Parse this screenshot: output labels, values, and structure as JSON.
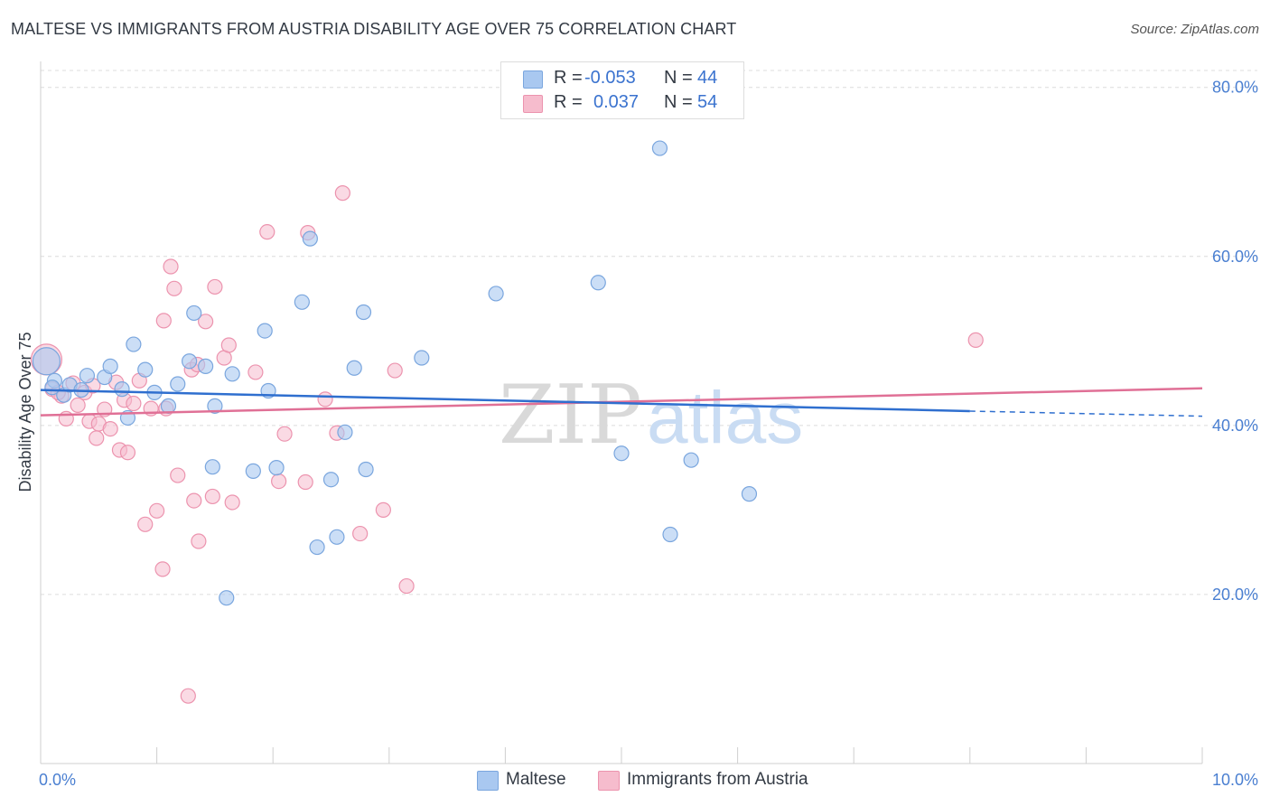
{
  "title": "MALTESE VS IMMIGRANTS FROM AUSTRIA DISABILITY AGE OVER 75 CORRELATION CHART",
  "source": "Source: ZipAtlas.com",
  "watermark": {
    "zip": "ZIP",
    "atlas": "atlas"
  },
  "legend": {
    "rows": [
      {
        "r_label": "R =",
        "r_value": "-0.053",
        "n_label": "N =",
        "n_value": "44"
      },
      {
        "r_label": "R =",
        "r_value": "0.037",
        "n_label": "N =",
        "n_value": "54"
      }
    ]
  },
  "bottom_legend": [
    "Maltese",
    "Immigrants from Austria"
  ],
  "colors": {
    "blue_fill": "#a9c8f0",
    "blue_stroke": "#7aa6de",
    "blue_line": "#2f6fcf",
    "pink_fill": "#f6bccd",
    "pink_stroke": "#ec93ae",
    "pink_line": "#e07096",
    "tick_text": "#4a7fd1",
    "grid": "#dcdcdc"
  },
  "chart_data": {
    "type": "scatter",
    "title": "MALTESE VS IMMIGRANTS FROM AUSTRIA DISABILITY AGE OVER 75 CORRELATION CHART",
    "xlabel": "",
    "ylabel": "Disability Age Over 75",
    "xlim": [
      0,
      10
    ],
    "ylim": [
      0,
      82
    ],
    "x_tick_labels": [
      "0.0%",
      "10.0%"
    ],
    "y_ticks": [
      20,
      40,
      60,
      80
    ],
    "y_tick_labels": [
      "20.0%",
      "40.0%",
      "60.0%",
      "80.0%"
    ],
    "grid": true,
    "legend_position": "top-center",
    "series": [
      {
        "name": "Maltese",
        "r": -0.053,
        "n": 44,
        "trend": {
          "x": [
            0.0,
            8.0
          ],
          "y": [
            44.2,
            41.7
          ]
        },
        "trend_dashed": {
          "x": [
            8.0,
            10.0
          ],
          "y": [
            41.7,
            41.1
          ]
        },
        "points": [
          [
            0.05,
            47.6
          ],
          [
            0.12,
            45.3
          ],
          [
            0.2,
            43.6
          ],
          [
            0.25,
            44.8
          ],
          [
            0.35,
            44.2
          ],
          [
            0.4,
            45.9
          ],
          [
            0.55,
            45.7
          ],
          [
            0.6,
            47.0
          ],
          [
            0.7,
            44.3
          ],
          [
            0.75,
            40.9
          ],
          [
            0.8,
            49.6
          ],
          [
            0.9,
            46.6
          ],
          [
            0.98,
            43.9
          ],
          [
            1.1,
            42.3
          ],
          [
            1.18,
            44.9
          ],
          [
            1.28,
            47.6
          ],
          [
            1.32,
            53.3
          ],
          [
            1.42,
            47.0
          ],
          [
            1.5,
            42.3
          ],
          [
            1.48,
            35.1
          ],
          [
            1.6,
            19.6
          ],
          [
            1.65,
            46.1
          ],
          [
            1.83,
            34.6
          ],
          [
            1.93,
            51.2
          ],
          [
            1.96,
            44.1
          ],
          [
            2.03,
            35.0
          ],
          [
            2.25,
            54.6
          ],
          [
            2.32,
            62.1
          ],
          [
            2.38,
            25.6
          ],
          [
            2.5,
            33.6
          ],
          [
            2.55,
            26.8
          ],
          [
            2.62,
            39.2
          ],
          [
            2.7,
            46.8
          ],
          [
            2.78,
            53.4
          ],
          [
            2.8,
            34.8
          ],
          [
            3.28,
            48.0
          ],
          [
            3.92,
            55.6
          ],
          [
            4.8,
            56.9
          ],
          [
            5.0,
            36.7
          ],
          [
            5.33,
            72.8
          ],
          [
            5.42,
            27.1
          ],
          [
            5.6,
            35.9
          ],
          [
            6.1,
            31.9
          ],
          [
            0.1,
            44.5
          ]
        ]
      },
      {
        "name": "Immigrants from Austria",
        "r": 0.037,
        "n": 54,
        "trend": {
          "x": [
            0.0,
            10.0
          ],
          "y": [
            41.2,
            44.4
          ]
        },
        "points": [
          [
            0.05,
            47.8
          ],
          [
            0.1,
            44.3
          ],
          [
            0.18,
            43.5
          ],
          [
            0.22,
            40.8
          ],
          [
            0.28,
            45.0
          ],
          [
            0.32,
            42.4
          ],
          [
            0.38,
            43.9
          ],
          [
            0.42,
            40.5
          ],
          [
            0.45,
            44.7
          ],
          [
            0.48,
            38.5
          ],
          [
            0.5,
            40.2
          ],
          [
            0.55,
            41.9
          ],
          [
            0.6,
            39.6
          ],
          [
            0.68,
            37.1
          ],
          [
            0.72,
            43.0
          ],
          [
            0.75,
            36.8
          ],
          [
            0.8,
            42.6
          ],
          [
            0.85,
            45.3
          ],
          [
            0.9,
            28.3
          ],
          [
            0.95,
            42.0
          ],
          [
            1.0,
            29.9
          ],
          [
            1.05,
            23.0
          ],
          [
            1.06,
            52.4
          ],
          [
            1.12,
            58.8
          ],
          [
            1.15,
            56.2
          ],
          [
            1.18,
            34.1
          ],
          [
            1.27,
            8.0
          ],
          [
            1.3,
            46.6
          ],
          [
            1.32,
            31.1
          ],
          [
            1.36,
            26.3
          ],
          [
            1.42,
            52.3
          ],
          [
            1.48,
            31.6
          ],
          [
            1.5,
            56.4
          ],
          [
            1.58,
            48.0
          ],
          [
            1.62,
            49.5
          ],
          [
            1.65,
            30.9
          ],
          [
            1.85,
            46.3
          ],
          [
            1.95,
            62.9
          ],
          [
            2.05,
            33.4
          ],
          [
            2.1,
            39.0
          ],
          [
            2.28,
            33.3
          ],
          [
            2.3,
            62.8
          ],
          [
            2.45,
            43.1
          ],
          [
            2.55,
            39.1
          ],
          [
            2.6,
            67.5
          ],
          [
            2.75,
            27.2
          ],
          [
            2.95,
            30.0
          ],
          [
            3.05,
            46.5
          ],
          [
            3.15,
            21.0
          ],
          [
            8.05,
            50.1
          ],
          [
            0.15,
            43.9
          ],
          [
            0.65,
            45.1
          ],
          [
            1.08,
            42.0
          ],
          [
            1.35,
            47.2
          ]
        ]
      }
    ]
  }
}
